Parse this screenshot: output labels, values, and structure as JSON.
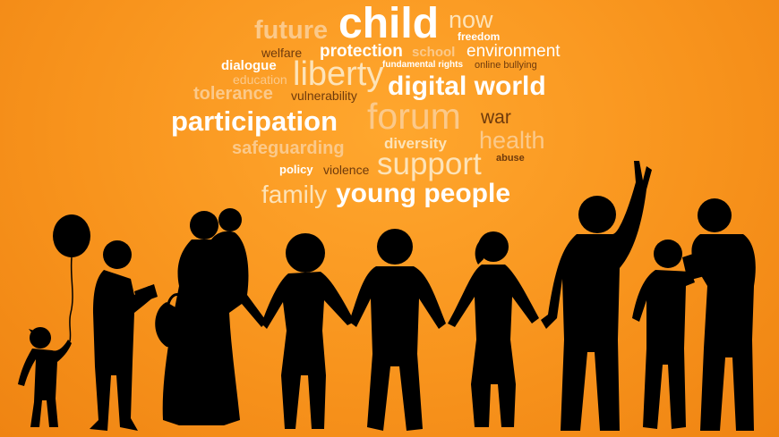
{
  "words": {
    "future": "future",
    "child": "child",
    "now": "now",
    "freedom": "freedom",
    "welfare": "welfare",
    "protection": "protection",
    "school": "school",
    "environment": "environment",
    "dialogue": "dialogue",
    "fundamental_rights": "fundamental rights",
    "online_bullying": "online bullying",
    "education": "education",
    "liberty": "liberty",
    "tolerance": "tolerance",
    "vulnerability": "vulnerability",
    "digital_world": "digital world",
    "participation": "participation",
    "forum": "forum",
    "war": "war",
    "safeguarding": "safeguarding",
    "diversity": "diversity",
    "health": "health",
    "abuse": "abuse",
    "policy": "policy",
    "violence": "violence",
    "support": "support",
    "family": "family",
    "young_people": "young people"
  },
  "colors": {
    "background": "#f7931e",
    "silhouette": "#000000",
    "word_white": "#ffffff",
    "word_light": "#fde3b8",
    "word_brown": "#6e3a0c"
  }
}
